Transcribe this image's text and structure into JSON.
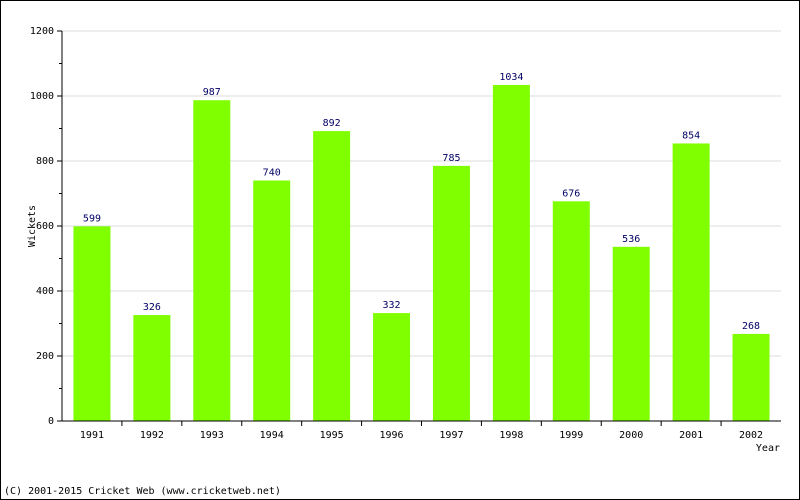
{
  "chart_data": {
    "type": "bar",
    "categories": [
      "1991",
      "1992",
      "1993",
      "1994",
      "1995",
      "1996",
      "1997",
      "1998",
      "1999",
      "2000",
      "2001",
      "2002"
    ],
    "values": [
      599,
      326,
      987,
      740,
      892,
      332,
      785,
      1034,
      676,
      536,
      854,
      268
    ],
    "title": "",
    "xlabel": "Year",
    "ylabel": "Wickets",
    "ylim": [
      0,
      1200
    ],
    "yticks": [
      0,
      200,
      400,
      600,
      800,
      1000,
      1200
    ],
    "grid": true,
    "legend": "none",
    "bar_color": "#7fff00",
    "label_color": "#000066"
  },
  "footer": {
    "copyright": "(C) 2001-2015 Cricket Web (www.cricketweb.net)"
  }
}
